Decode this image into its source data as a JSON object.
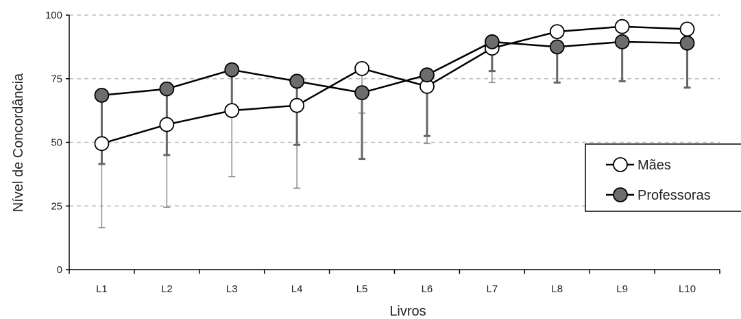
{
  "chart_data": {
    "type": "line",
    "xlabel": "Livros",
    "ylabel": "Nível de Concordância",
    "categories": [
      "L1",
      "L2",
      "L3",
      "L4",
      "L5",
      "L6",
      "L7",
      "L8",
      "L9",
      "L10"
    ],
    "ylim": [
      0,
      100
    ],
    "yticks": [
      0,
      25,
      50,
      75,
      100
    ],
    "grid": "horizontal-dashed",
    "legend_position": "right",
    "series": [
      {
        "name": "Mães",
        "marker": "open-circle",
        "fill": "#ffffff",
        "values": [
          49.5,
          57,
          62.5,
          64.5,
          79,
          72,
          87,
          93.5,
          95.5,
          94.5
        ],
        "error_lower": [
          16.5,
          24.5,
          36.5,
          32,
          61.5,
          49.5,
          73.5,
          73.5,
          74,
          71.5
        ]
      },
      {
        "name": "Professoras",
        "marker": "filled-circle",
        "fill": "#6d6d6d",
        "values": [
          68.5,
          71,
          78.5,
          74,
          69.5,
          76.5,
          89.5,
          87.5,
          89.5,
          89
        ],
        "error_lower": [
          41.5,
          45,
          62,
          49,
          43.5,
          52.5,
          78,
          73.5,
          74,
          71.5
        ]
      }
    ]
  },
  "legend": {
    "items": [
      "Mães",
      "Professoras"
    ]
  }
}
